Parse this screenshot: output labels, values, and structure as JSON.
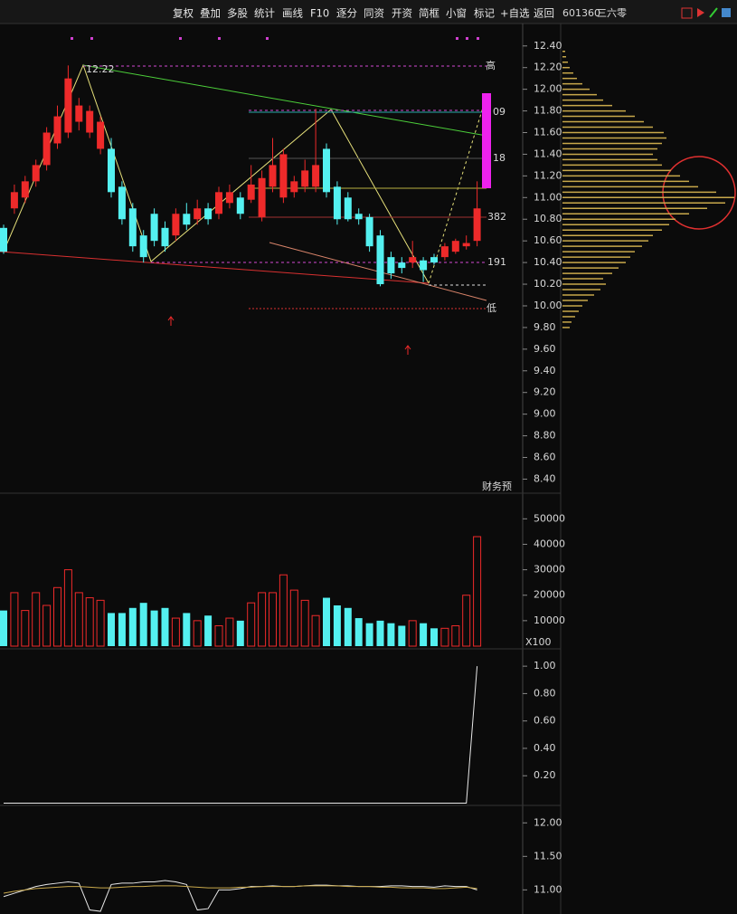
{
  "toolbar": {
    "buttons": [
      "复权",
      "叠加",
      "多股",
      "统计",
      "画线",
      "F10",
      "逐分",
      "同资",
      "开资",
      "简框",
      "小窗",
      "标记",
      "+自选",
      "返回"
    ]
  },
  "stock": {
    "code": "601360",
    "name": "三六零"
  },
  "chart_data": [
    {
      "type": "candlestick",
      "up_color": "#ee2a2a",
      "down_color": "#54f0f0",
      "open": [
        10.72,
        10.9,
        11.0,
        11.15,
        11.3,
        11.5,
        11.6,
        11.7,
        11.6,
        11.45,
        11.45,
        11.1,
        10.9,
        10.65,
        10.85,
        10.72,
        10.65,
        10.85,
        10.8,
        10.9,
        10.85,
        10.95,
        11.0,
        10.98,
        10.82,
        11.1,
        11.0,
        11.05,
        11.1,
        11.1,
        11.45,
        11.1,
        11.0,
        10.85,
        10.82,
        10.65,
        10.45,
        10.4,
        10.4,
        10.42,
        10.45,
        10.45,
        10.5,
        10.55,
        10.6
      ],
      "high": [
        10.75,
        11.12,
        11.2,
        11.35,
        11.65,
        11.85,
        12.22,
        11.92,
        11.85,
        11.75,
        11.55,
        11.15,
        10.95,
        10.7,
        10.9,
        10.78,
        10.9,
        10.95,
        10.98,
        10.95,
        11.1,
        11.12,
        11.05,
        11.3,
        11.25,
        11.55,
        11.45,
        11.2,
        11.35,
        11.82,
        11.5,
        11.15,
        11.05,
        10.9,
        10.85,
        10.7,
        10.5,
        10.45,
        10.6,
        10.45,
        10.48,
        10.58,
        10.62,
        10.65,
        11.15
      ],
      "low": [
        10.48,
        10.85,
        10.95,
        11.1,
        11.25,
        11.45,
        11.55,
        11.62,
        11.55,
        11.4,
        11.0,
        10.75,
        10.5,
        10.4,
        10.55,
        10.5,
        10.6,
        10.7,
        10.75,
        10.75,
        10.8,
        10.9,
        10.8,
        10.95,
        10.78,
        11.05,
        10.95,
        11.0,
        11.05,
        11.05,
        11.0,
        10.75,
        10.78,
        10.75,
        10.5,
        10.18,
        10.25,
        10.3,
        10.35,
        10.22,
        10.38,
        10.42,
        10.48,
        10.52,
        10.55
      ],
      "close": [
        10.5,
        11.05,
        11.15,
        11.3,
        11.6,
        11.75,
        12.1,
        11.85,
        11.8,
        11.7,
        11.05,
        10.8,
        10.55,
        10.45,
        10.6,
        10.55,
        10.85,
        10.75,
        10.9,
        10.8,
        11.05,
        11.05,
        10.85,
        11.12,
        11.18,
        11.3,
        11.4,
        11.15,
        11.25,
        11.3,
        11.05,
        10.8,
        10.8,
        10.8,
        10.55,
        10.2,
        10.3,
        10.35,
        10.45,
        10.33,
        10.4,
        10.55,
        10.6,
        10.58,
        10.9
      ],
      "annotations": [
        "12.22",
        "高",
        "09",
        "18",
        "382",
        "191",
        "低",
        "财务预"
      ],
      "ylim": [
        8.27,
        12.49
      ],
      "yticks": [
        {
          "value": 12.4,
          "label": "12.40"
        },
        {
          "value": 12.2,
          "label": "12.20"
        },
        {
          "value": 12.0,
          "label": "12.00"
        },
        {
          "value": 11.8,
          "label": "11.80"
        },
        {
          "value": 11.6,
          "label": "11.60"
        },
        {
          "value": 11.4,
          "label": "11.40"
        },
        {
          "value": 11.2,
          "label": "11.20"
        },
        {
          "value": 11.0,
          "label": "11.00"
        },
        {
          "value": 10.8,
          "label": "10.80"
        },
        {
          "value": 10.6,
          "label": "10.60"
        },
        {
          "value": 10.4,
          "label": "10.40"
        },
        {
          "value": 10.2,
          "label": "10.20"
        },
        {
          "value": 10.0,
          "label": "10.00"
        },
        {
          "value": 9.8,
          "label": "9.80"
        },
        {
          "value": 9.6,
          "label": "9.60"
        },
        {
          "value": 9.4,
          "label": "9.40"
        },
        {
          "value": 9.2,
          "label": "9.20"
        },
        {
          "value": 9.0,
          "label": "9.00"
        },
        {
          "value": 8.8,
          "label": "8.80"
        },
        {
          "value": 8.6,
          "label": "8.60"
        },
        {
          "value": 8.4,
          "label": "8.40"
        }
      ]
    },
    {
      "type": "profile",
      "color": "#c8a84b",
      "ylim": [
        8.27,
        12.49
      ],
      "levels": [
        9.8,
        9.85,
        9.9,
        9.95,
        10.0,
        10.05,
        10.1,
        10.15,
        10.2,
        10.25,
        10.3,
        10.35,
        10.4,
        10.45,
        10.5,
        10.55,
        10.6,
        10.65,
        10.7,
        10.75,
        10.8,
        10.85,
        10.9,
        10.95,
        11.0,
        11.05,
        11.1,
        11.15,
        11.2,
        11.25,
        11.3,
        11.35,
        11.4,
        11.45,
        11.5,
        11.55,
        11.6,
        11.65,
        11.7,
        11.75,
        11.8,
        11.85,
        11.9,
        11.95,
        12.0,
        12.05,
        12.1,
        12.15,
        12.2,
        12.25,
        12.3,
        12.35
      ],
      "values": [
        8,
        10,
        14,
        18,
        22,
        28,
        35,
        42,
        48,
        45,
        55,
        62,
        70,
        75,
        80,
        88,
        95,
        100,
        110,
        118,
        125,
        140,
        160,
        180,
        190,
        170,
        150,
        140,
        130,
        120,
        110,
        105,
        100,
        105,
        110,
        115,
        112,
        100,
        90,
        80,
        70,
        55,
        45,
        38,
        30,
        22,
        16,
        12,
        8,
        6,
        4,
        3
      ]
    },
    {
      "type": "bar",
      "unit_label": "X100",
      "ylim": [
        0,
        59000
      ],
      "yticks": [
        10000,
        20000,
        30000,
        40000,
        50000
      ],
      "values": [
        14000,
        21000,
        14000,
        21000,
        16000,
        23000,
        30000,
        21000,
        19000,
        18000,
        13000,
        13000,
        15000,
        17000,
        14000,
        15000,
        11000,
        13000,
        10000,
        12000,
        8000,
        11000,
        10000,
        17000,
        21000,
        21000,
        28000,
        22000,
        18000,
        12000,
        19000,
        16000,
        15000,
        11000,
        9000,
        10000,
        9000,
        8000,
        10000,
        9000,
        7000,
        7000,
        8000,
        20000,
        43000
      ]
    },
    {
      "type": "line",
      "color": "#e8e8e8",
      "ylim": [
        0,
        1.1
      ],
      "yticks": [
        {
          "value": 0.2,
          "label": "0.20"
        },
        {
          "value": 0.4,
          "label": "0.40"
        },
        {
          "value": 0.6,
          "label": "0.60"
        },
        {
          "value": 0.8,
          "label": "0.80"
        },
        {
          "value": 1.0,
          "label": "1.00"
        }
      ],
      "values": [
        0,
        0,
        0,
        0,
        0,
        0,
        0,
        0,
        0,
        0,
        0,
        0,
        0,
        0,
        0,
        0,
        0,
        0,
        0,
        0,
        0,
        0,
        0,
        0,
        0,
        0,
        0,
        0,
        0,
        0,
        0,
        0,
        0,
        0,
        0,
        0,
        0,
        0,
        0,
        0,
        0,
        0,
        0,
        0,
        1.0
      ]
    },
    {
      "type": "line",
      "ylim": [
        10.64,
        12.22
      ],
      "yticks": [
        {
          "value": 11.0,
          "label": "11.00"
        },
        {
          "value": 11.5,
          "label": "11.50"
        },
        {
          "value": 12.0,
          "label": "12.00"
        }
      ],
      "series": [
        {
          "color": "#e8e8e8",
          "values": [
            10.9,
            10.95,
            11.0,
            11.05,
            11.08,
            11.1,
            11.12,
            11.1,
            10.7,
            10.68,
            11.08,
            11.1,
            11.1,
            11.12,
            11.12,
            11.14,
            11.12,
            11.08,
            10.7,
            10.72,
            11.0,
            11.0,
            11.02,
            11.05,
            11.05,
            11.06,
            11.05,
            11.05,
            11.06,
            11.07,
            11.07,
            11.06,
            11.06,
            11.05,
            11.05,
            11.05,
            11.06,
            11.06,
            11.05,
            11.05,
            11.04,
            11.06,
            11.05,
            11.05,
            11.0
          ]
        },
        {
          "color": "#c8a84b",
          "values": [
            10.95,
            10.98,
            11.0,
            11.02,
            11.03,
            11.04,
            11.05,
            11.05,
            11.04,
            11.03,
            11.03,
            11.04,
            11.05,
            11.05,
            11.06,
            11.06,
            11.06,
            11.05,
            11.04,
            11.03,
            11.03,
            11.03,
            11.04,
            11.04,
            11.05,
            11.05,
            11.05,
            11.05,
            11.06,
            11.06,
            11.06,
            11.06,
            11.05,
            11.05,
            11.05,
            11.04,
            11.04,
            11.03,
            11.03,
            11.03,
            11.02,
            11.02,
            11.03,
            11.04,
            11.02
          ]
        }
      ]
    }
  ]
}
